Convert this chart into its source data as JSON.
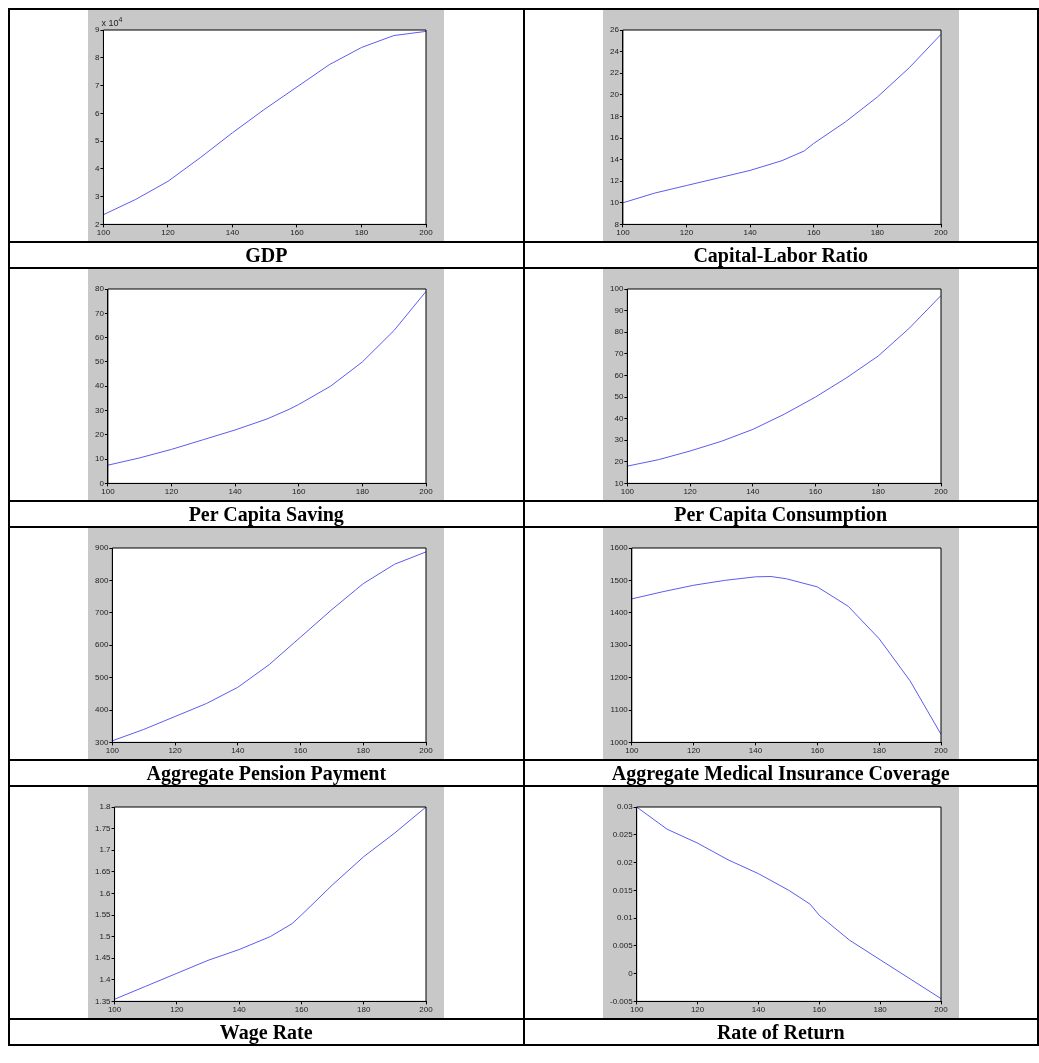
{
  "chart_data": [
    {
      "type": "line",
      "title": "GDP",
      "annotations": [
        "x 10$^{4}$"
      ],
      "x": [
        100,
        110,
        120,
        130,
        140,
        150,
        160,
        170,
        180,
        190,
        200
      ],
      "values": [
        2.35,
        2.9,
        3.55,
        4.4,
        5.3,
        6.15,
        6.95,
        7.75,
        8.37,
        8.8,
        8.95
      ],
      "color": "#5c5cf0",
      "marker": "none",
      "xlim": [
        100,
        200
      ],
      "xticks": [
        100,
        120,
        140,
        160,
        180,
        200
      ],
      "ylim": [
        2,
        9
      ],
      "yticks": [
        2,
        3,
        4,
        5,
        6,
        7,
        8,
        9
      ]
    },
    {
      "type": "line",
      "title": "Capital-Labor Ratio",
      "x": [
        100,
        110,
        120,
        130,
        140,
        150,
        157,
        160,
        170,
        180,
        190,
        200
      ],
      "values": [
        10,
        10.9,
        11.6,
        12.3,
        13.0,
        13.9,
        14.8,
        15.5,
        17.5,
        19.8,
        22.5,
        25.6
      ],
      "color": "#5c5cf0",
      "marker": "none",
      "xlim": [
        100,
        200
      ],
      "xticks": [
        100,
        120,
        140,
        160,
        180,
        200
      ],
      "ylim": [
        8,
        26
      ],
      "yticks": [
        8,
        10,
        12,
        14,
        16,
        18,
        20,
        22,
        24,
        26
      ]
    },
    {
      "type": "line",
      "title": "Per Capita Saving",
      "x": [
        100,
        110,
        120,
        130,
        140,
        150,
        157,
        160,
        170,
        180,
        190,
        200
      ],
      "values": [
        7.5,
        10.5,
        14,
        18,
        22,
        26.5,
        30.5,
        32.5,
        40,
        50,
        63,
        79
      ],
      "color": "#5c5cf0",
      "marker": "none",
      "xlim": [
        100,
        200
      ],
      "xticks": [
        100,
        120,
        140,
        160,
        180,
        200
      ],
      "ylim": [
        0,
        80
      ],
      "yticks": [
        0,
        10,
        20,
        30,
        40,
        50,
        60,
        70,
        80
      ]
    },
    {
      "type": "line",
      "title": "Per Capita Consumption",
      "x": [
        100,
        110,
        120,
        130,
        140,
        150,
        160,
        170,
        180,
        190,
        200
      ],
      "values": [
        18,
        21,
        25,
        29.5,
        35,
        42,
        50,
        59,
        69,
        82,
        97
      ],
      "color": "#5c5cf0",
      "marker": "none",
      "xlim": [
        100,
        200
      ],
      "xticks": [
        100,
        120,
        140,
        160,
        180,
        200
      ],
      "ylim": [
        10,
        100
      ],
      "yticks": [
        10,
        20,
        30,
        40,
        50,
        60,
        70,
        80,
        90,
        100
      ]
    },
    {
      "type": "line",
      "title": "Aggregate Pension Payment",
      "x": [
        100,
        110,
        120,
        130,
        140,
        150,
        160,
        170,
        180,
        190,
        200
      ],
      "values": [
        305,
        340,
        380,
        420,
        470,
        540,
        625,
        710,
        790,
        850,
        888
      ],
      "color": "#5c5cf0",
      "marker": "none",
      "xlim": [
        100,
        200
      ],
      "xticks": [
        100,
        120,
        140,
        160,
        180,
        200
      ],
      "ylim": [
        300,
        900
      ],
      "yticks": [
        300,
        400,
        500,
        600,
        700,
        800,
        900
      ]
    },
    {
      "type": "line",
      "title": "Aggregate Medical Insurance Coverage",
      "x": [
        100,
        110,
        120,
        130,
        140,
        145,
        150,
        160,
        170,
        180,
        190,
        200
      ],
      "values": [
        1443,
        1465,
        1485,
        1500,
        1511,
        1512,
        1505,
        1480,
        1420,
        1320,
        1190,
        1025
      ],
      "color": "#5c5cf0",
      "marker": "none",
      "xlim": [
        100,
        200
      ],
      "xticks": [
        100,
        120,
        140,
        160,
        180,
        200
      ],
      "ylim": [
        1000,
        1600
      ],
      "yticks": [
        1000,
        1100,
        1200,
        1300,
        1400,
        1500,
        1600
      ]
    },
    {
      "type": "line",
      "title": "Wage Rate",
      "x": [
        100,
        110,
        120,
        130,
        140,
        150,
        157,
        160,
        170,
        180,
        190,
        200
      ],
      "values": [
        1.355,
        1.385,
        1.415,
        1.445,
        1.47,
        1.5,
        1.53,
        1.55,
        1.62,
        1.685,
        1.74,
        1.8
      ],
      "color": "#5c5cf0",
      "marker": "none",
      "xlim": [
        100,
        200
      ],
      "xticks": [
        100,
        120,
        140,
        160,
        180,
        200
      ],
      "ylim": [
        1.35,
        1.8
      ],
      "yticks": [
        1.35,
        1.4,
        1.45,
        1.5,
        1.55,
        1.6,
        1.65,
        1.7,
        1.75,
        1.8
      ]
    },
    {
      "type": "line",
      "title": "Rate of Return",
      "x": [
        100,
        110,
        120,
        130,
        140,
        150,
        157,
        160,
        170,
        180,
        190,
        200
      ],
      "values": [
        0.03,
        0.026,
        0.0235,
        0.0205,
        0.018,
        0.015,
        0.0125,
        0.0105,
        0.006,
        0.0025,
        -0.001,
        -0.0045
      ],
      "color": "#5c5cf0",
      "marker": "none",
      "xlim": [
        100,
        200
      ],
      "xticks": [
        100,
        120,
        140,
        160,
        180,
        200
      ],
      "ylim": [
        -0.005,
        0.03
      ],
      "yticks": [
        -0.005,
        0,
        0.005,
        0.01,
        0.015,
        0.02,
        0.025,
        0.03
      ]
    }
  ]
}
